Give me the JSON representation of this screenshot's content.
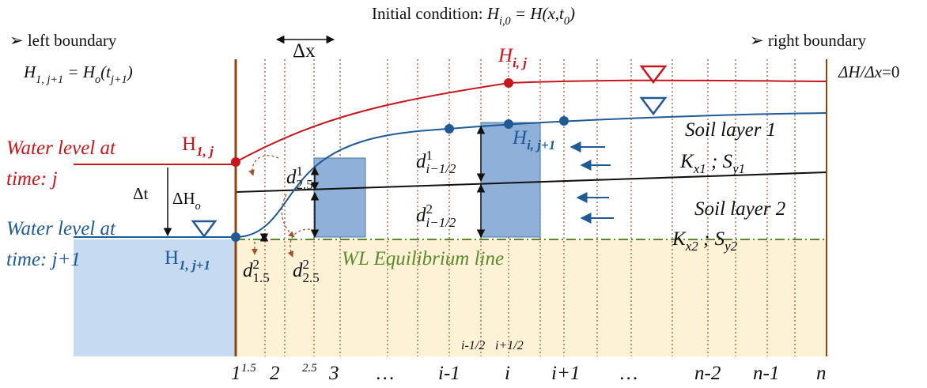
{
  "labels": [
    {
      "parts": [
        {
          "text": "Initial condition:  "
        },
        {
          "text": "H",
          "italic": true
        },
        {
          "text": "i,0",
          "sub": true,
          "italic": true
        },
        {
          "text": " = H(x,t",
          "italic": true
        },
        {
          "text": "0",
          "sub": true,
          "italic": true
        },
        {
          "text": ")",
          "italic": true
        }
      ]
    },
    {
      "parts": [
        {
          "text": "➢ left boundary"
        }
      ]
    },
    {
      "parts": [
        {
          "text": "➢ right boundary"
        }
      ]
    },
    {
      "parts": [
        {
          "text": "H",
          "italic": true
        },
        {
          "text": "1, j+1",
          "sub": true,
          "italic": true
        },
        {
          "text": " = H",
          "italic": true
        },
        {
          "text": "o",
          "sub": true,
          "italic": true
        },
        {
          "text": "(t",
          "italic": true
        },
        {
          "text": "j+1",
          "sub": true,
          "italic": true
        },
        {
          "text": ")",
          "italic": true
        }
      ]
    },
    {
      "parts": [
        {
          "text": "ΔH/Δx",
          "italic": true
        },
        {
          "text": "=0"
        }
      ]
    },
    {
      "parts": [
        {
          "text": "Δx"
        }
      ]
    },
    {
      "parts": [
        {
          "text": "H",
          "italic": true
        },
        {
          "text": "i, j",
          "sub": true,
          "italic": true,
          "bold": true
        }
      ]
    },
    {
      "parts": [
        {
          "text": "Water level at",
          "italic": true
        }
      ]
    },
    {
      "parts": [
        {
          "text": "time: j",
          "italic": true
        }
      ]
    },
    {
      "parts": [
        {
          "text": "H"
        },
        {
          "text": "1, j",
          "sub": true,
          "italic": true,
          "bold": true
        }
      ]
    },
    {
      "parts": [
        {
          "text": "Δt"
        }
      ]
    },
    {
      "parts": [
        {
          "text": "ΔH"
        },
        {
          "text": "o",
          "sub": true,
          "italic": true
        }
      ]
    },
    {
      "parts": [
        {
          "text": "Water level at",
          "italic": true
        }
      ]
    },
    {
      "parts": [
        {
          "text": "time: j+1",
          "italic": true
        }
      ]
    },
    {
      "parts": [
        {
          "text": "H"
        },
        {
          "text": "1, j+1",
          "sub": true,
          "italic": true,
          "bold": true
        }
      ]
    },
    {
      "parts": [
        {
          "text": "d",
          "italic": true
        },
        {
          "text": "1",
          "sup": true
        },
        {
          "text": "2.5",
          "sub": true
        }
      ]
    },
    {
      "parts": [
        {
          "text": "d",
          "italic": true
        },
        {
          "text": "1",
          "sup": true
        },
        {
          "text": "i−1/2",
          "sub": true,
          "italic": true
        }
      ]
    },
    {
      "parts": [
        {
          "text": "d",
          "italic": true
        },
        {
          "text": "2",
          "sup": true
        },
        {
          "text": "i−1/2",
          "sub": true,
          "italic": true
        }
      ]
    },
    {
      "parts": [
        {
          "text": "d",
          "italic": true
        },
        {
          "text": "2",
          "sup": true
        },
        {
          "text": "1.5",
          "sub": true
        }
      ]
    },
    {
      "parts": [
        {
          "text": "d",
          "italic": true
        },
        {
          "text": "2",
          "sup": true
        },
        {
          "text": "2.5",
          "sub": true
        }
      ]
    },
    {
      "parts": [
        {
          "text": "H",
          "italic": true
        },
        {
          "text": "i, j+1",
          "sub": true,
          "italic": true,
          "bold": true
        }
      ]
    },
    {
      "parts": [
        {
          "text": "Soil layer 1",
          "italic": true
        }
      ]
    },
    {
      "parts": [
        {
          "text": "K",
          "italic": true
        },
        {
          "text": "x1",
          "sub": true,
          "italic": true
        },
        {
          "text": " ; S",
          "italic": true
        },
        {
          "text": "y1",
          "sub": true,
          "italic": true
        }
      ]
    },
    {
      "parts": [
        {
          "text": "Soil layer 2",
          "italic": true
        }
      ]
    },
    {
      "parts": [
        {
          "text": "K",
          "italic": true
        },
        {
          "text": "x2",
          "sub": true,
          "italic": true
        },
        {
          "text": " ; S",
          "italic": true
        },
        {
          "text": "y2",
          "sub": true,
          "italic": true
        }
      ]
    },
    {
      "parts": [
        {
          "text": "WL Equilibrium line",
          "italic": true
        }
      ]
    },
    {
      "parts": [
        {
          "text": "i-1/2",
          "italic": true
        }
      ]
    },
    {
      "parts": [
        {
          "text": "i+1/2",
          "italic": true
        }
      ]
    }
  ],
  "axis_labels": [
    "1",
    "1.5",
    "2",
    "2.5",
    "3",
    "…",
    "i-1",
    "i",
    "i+1",
    "…",
    "n-2",
    "n-1",
    "n"
  ]
}
